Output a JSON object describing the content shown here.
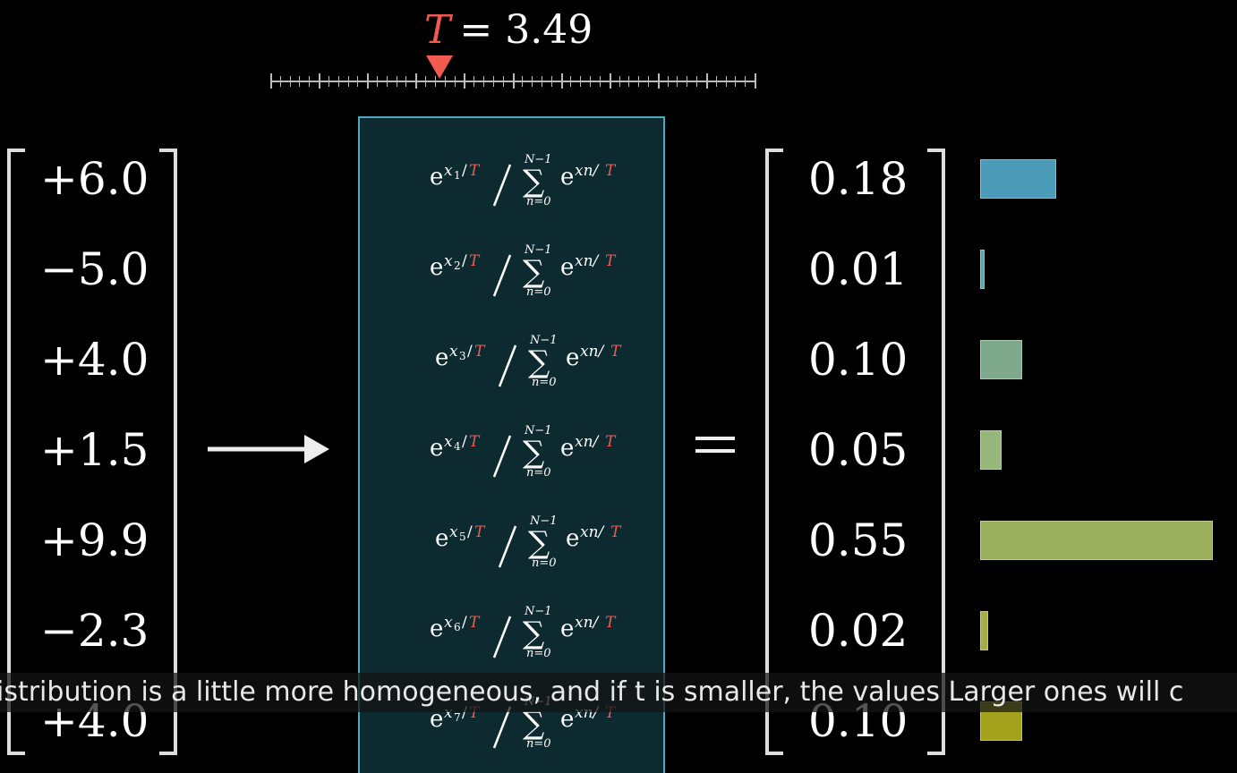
{
  "temperature": {
    "symbol": "T",
    "equals": "=",
    "value": "3.49",
    "slider_fraction": 0.349
  },
  "inputs": [
    "+6.0",
    "−5.0",
    "+4.0",
    "+1.5",
    "+9.9",
    "−2.3",
    "+4.0"
  ],
  "formula": {
    "numerator_base": "e",
    "numerator_var": "x",
    "subscripts": [
      "1",
      "2",
      "3",
      "4",
      "5",
      "6",
      "7"
    ],
    "temp_symbol": "T",
    "slash": "/",
    "sum_upper": "N−1",
    "sum_lower": "n=0",
    "sigma": "∑",
    "term_exp": "xn/"
  },
  "equals_sign": "=",
  "outputs": [
    "0.18",
    "0.01",
    "0.10",
    "0.05",
    "0.55",
    "0.02",
    "0.10"
  ],
  "bars": [
    {
      "value": 0.18,
      "color": "#4b9ab7"
    },
    {
      "value": 0.01,
      "color": "#5aa6a8"
    },
    {
      "value": 0.1,
      "color": "#7fa98c"
    },
    {
      "value": 0.05,
      "color": "#96b77a"
    },
    {
      "value": 0.55,
      "color": "#9aae5c"
    },
    {
      "value": 0.02,
      "color": "#a5ad45"
    },
    {
      "value": 0.1,
      "color": "#a3a21c"
    }
  ],
  "subtitle": "istribution is a little more homogeneous, and if t is smaller, the values  Larger ones will c"
}
